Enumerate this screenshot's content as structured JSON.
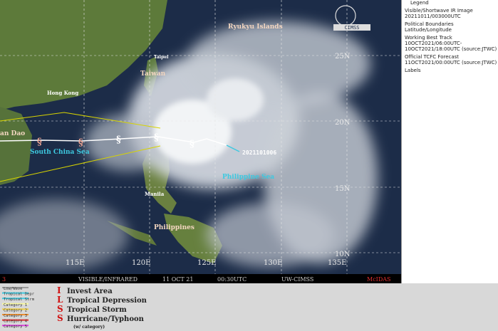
{
  "map": {
    "place_labels": [
      "Ryukyu Islands",
      "Taipei",
      "Taiwan",
      "Hong Kong",
      "an Dao",
      "South China Sea",
      "Philippine Sea",
      "Manila",
      "Philippines"
    ],
    "track_label": "2021101006",
    "logo": "CIMSS",
    "lat_labels": [
      "25N",
      "20N",
      "15N",
      "10N"
    ],
    "lon_labels": [
      "115E",
      "120E",
      "125E",
      "130E",
      "135E"
    ]
  },
  "status_bar": {
    "frame": "3",
    "image": "VISIBLE/INFRARED",
    "date": "11 OCT 21",
    "time": "00:30UTC",
    "source": "UW-CIMSS",
    "software": "McIDAS"
  },
  "side_legend": [
    "Legend",
    "Visible/Shortwave IR Image",
    "20211011/003000UTC",
    "Political Boundaries",
    "Latitude/Longitude",
    "Working Best Track",
    "10OCT2021/06:00UTC-",
    "10OCT2021/18:00UTC   (source:JTWC)",
    "Official TCFC Forecast",
    "11OCT2021/00:00UTC  (source:JTWC)",
    "Labels"
  ],
  "track_types": [
    "Low/Wave",
    "Tropical Depr",
    "Tropical Strm",
    "Category 1",
    "Category 2",
    "Category 3",
    "Category 4",
    "Category 5"
  ],
  "symbols": [
    {
      "glyph": "I",
      "label": "Invest Area"
    },
    {
      "glyph": "L",
      "label": "Tropical Depression"
    },
    {
      "glyph": "S",
      "label": "Tropical Storm"
    },
    {
      "glyph": "S",
      "label": "Hurricane/Typhoon"
    }
  ],
  "symbol_note": "(w/ category)"
}
